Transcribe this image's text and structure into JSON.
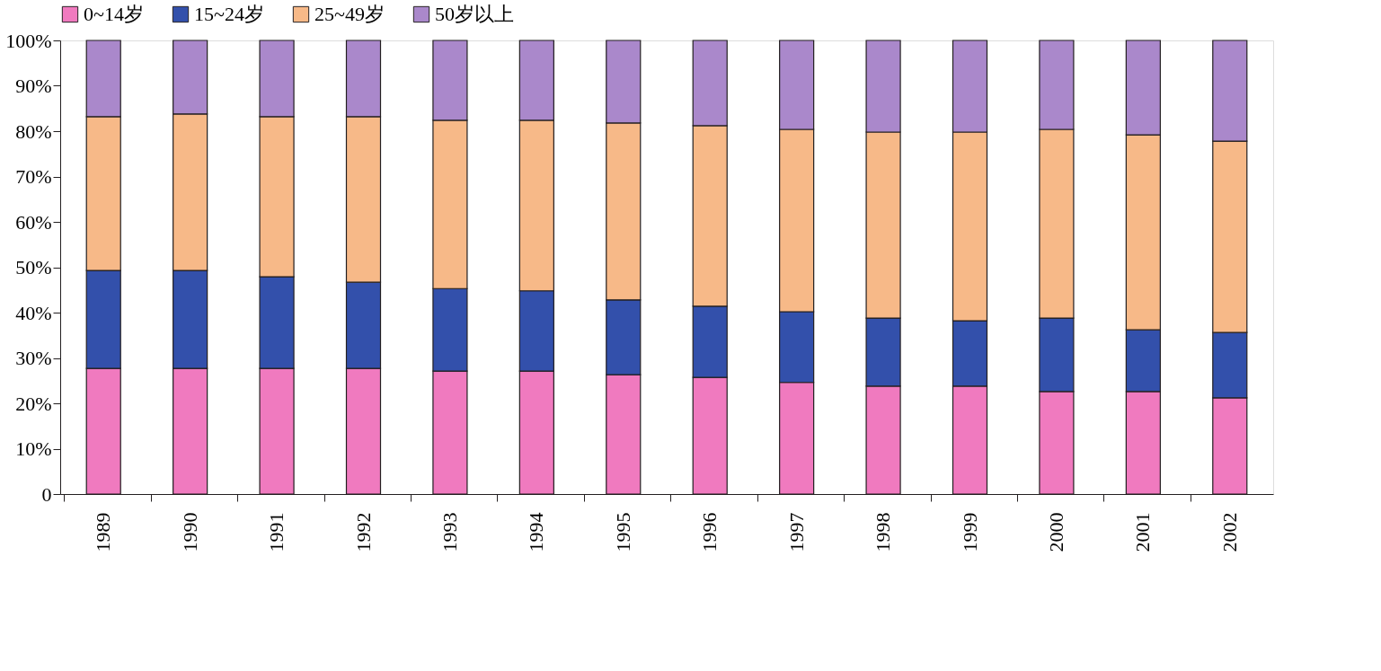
{
  "chart_data": {
    "type": "bar",
    "stacked": true,
    "categories": [
      "1989",
      "1990",
      "1991",
      "1992",
      "1993",
      "1994",
      "1995",
      "1996",
      "1997",
      "1998",
      "1999",
      "2000",
      "2001",
      "2002"
    ],
    "series": [
      {
        "name": "0~14岁",
        "color": "#f07abf",
        "values": [
          27.7,
          27.7,
          27.7,
          27.7,
          27.1,
          27.1,
          26.3,
          25.7,
          24.6,
          23.8,
          23.8,
          22.6,
          22.6,
          21.2
        ]
      },
      {
        "name": "15~24岁",
        "color": "#3350ab",
        "values": [
          21.6,
          21.6,
          20.2,
          19.0,
          18.2,
          17.7,
          16.5,
          15.7,
          15.6,
          15.0,
          14.4,
          16.2,
          13.6,
          14.4
        ]
      },
      {
        "name": "25~49岁",
        "color": "#f7b988",
        "values": [
          33.9,
          34.5,
          35.3,
          36.5,
          37.1,
          37.6,
          39.0,
          39.8,
          40.2,
          41.0,
          41.6,
          41.6,
          43.0,
          42.2
        ]
      },
      {
        "name": "50岁以上",
        "color": "#aa88cb",
        "values": [
          16.8,
          16.2,
          16.8,
          16.8,
          17.6,
          17.6,
          18.2,
          18.8,
          19.6,
          20.2,
          20.2,
          19.6,
          20.8,
          22.2
        ]
      }
    ],
    "ylim": [
      0,
      100
    ],
    "yticks": [
      0,
      {
        "value": 10,
        "label": "10%"
      },
      {
        "value": 20,
        "label": "20%"
      },
      {
        "value": 30,
        "label": "30%"
      },
      {
        "value": 40,
        "label": "40%"
      },
      {
        "value": 50,
        "label": "50%"
      },
      {
        "value": 60,
        "label": "60%"
      },
      {
        "value": 70,
        "label": "70%"
      },
      {
        "value": 80,
        "label": "80%"
      },
      {
        "value": 90,
        "label": "90%"
      },
      {
        "value": 100,
        "label": "100%"
      }
    ],
    "grid": false,
    "legend": "top"
  }
}
